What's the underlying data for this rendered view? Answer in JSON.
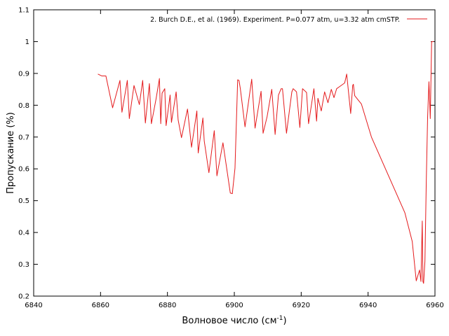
{
  "chart_data": {
    "type": "line",
    "xlabel": "Волновое число (см",
    "xlabel_sup": "-1",
    "xlabel_suffix": ")",
    "ylabel": "Пропускание (%)",
    "xlim": [
      6840,
      6960
    ],
    "ylim": [
      0.2,
      1.1
    ],
    "x_ticks": [
      6840,
      6860,
      6880,
      6900,
      6920,
      6940,
      6960
    ],
    "y_ticks": [
      0.2,
      0.3,
      0.4,
      0.5,
      0.6,
      0.7,
      0.8,
      0.9,
      1.0,
      1.1
    ],
    "x_tick_labels": [
      "6840",
      "6860",
      "6880",
      "6900",
      "6920",
      "6940",
      "6960"
    ],
    "y_tick_labels": [
      "0.2",
      "0.3",
      "0.4",
      "0.5",
      "0.6",
      "0.7",
      "0.8",
      "0.9",
      "1",
      "1.1"
    ],
    "grid": false,
    "legend_position": "top-right",
    "colors": {
      "series": "#e41a1c",
      "axis": "#000000"
    },
    "series": [
      {
        "name": "2. Burch D.E., et al. (1969). Experiment. P=0.077 atm, u=3.32 atm cmSTP.",
        "x": [
          6859.2,
          6860.4,
          6861.6,
          6863.6,
          6865.8,
          6866.4,
          6868.0,
          6868.6,
          6870.0,
          6871.6,
          6872.6,
          6873.4,
          6874.6,
          6875.2,
          6876.6,
          6877.6,
          6878.0,
          6878.4,
          6879.2,
          6879.6,
          6880.8,
          6881.2,
          6882.6,
          6883.2,
          6884.2,
          6886.0,
          6887.2,
          6888.8,
          6889.2,
          6890.6,
          6891.0,
          6892.4,
          6894.0,
          6894.8,
          6896.6,
          6898.8,
          6899.4,
          6900.2,
          6901.0,
          6901.4,
          6901.8,
          6903.2,
          6905.2,
          6906.2,
          6908.0,
          6908.6,
          6909.8,
          6911.2,
          6912.2,
          6913.2,
          6914.0,
          6914.4,
          6915.6,
          6917.2,
          6917.6,
          6918.6,
          6919.6,
          6920.4,
          6921.6,
          6922.2,
          6923.8,
          6924.6,
          6925.0,
          6926.0,
          6927.0,
          6928.0,
          6929.0,
          6929.8,
          6930.6,
          6931.4,
          6933.0,
          6933.6,
          6934.8,
          6935.4,
          6935.6,
          6936.0,
          6938.0,
          6941.0,
          6951.0,
          6953.2,
          6954.4,
          6955.4,
          6955.8,
          6956.2,
          6956.4,
          6956.6,
          6957.0,
          6957.4,
          6957.8,
          6958.2,
          6958.6,
          6959.0,
          6959.2,
          6959.6
        ],
        "y": [
          0.898,
          0.892,
          0.892,
          0.792,
          0.878,
          0.778,
          0.878,
          0.758,
          0.862,
          0.802,
          0.878,
          0.744,
          0.868,
          0.742,
          0.82,
          0.884,
          0.742,
          0.838,
          0.852,
          0.736,
          0.832,
          0.746,
          0.842,
          0.754,
          0.698,
          0.788,
          0.668,
          0.782,
          0.65,
          0.76,
          0.688,
          0.588,
          0.72,
          0.578,
          0.682,
          0.524,
          0.522,
          0.602,
          0.88,
          0.878,
          0.852,
          0.732,
          0.882,
          0.728,
          0.844,
          0.712,
          0.764,
          0.85,
          0.708,
          0.832,
          0.852,
          0.852,
          0.712,
          0.842,
          0.852,
          0.842,
          0.73,
          0.852,
          0.84,
          0.742,
          0.852,
          0.75,
          0.822,
          0.782,
          0.842,
          0.808,
          0.85,
          0.824,
          0.852,
          0.858,
          0.87,
          0.898,
          0.774,
          0.862,
          0.866,
          0.83,
          0.804,
          0.7,
          0.462,
          0.372,
          0.248,
          0.282,
          0.246,
          0.436,
          0.246,
          0.24,
          0.31,
          0.56,
          0.762,
          0.874,
          0.758,
          1.0,
          1.0,
          1.0
        ]
      }
    ]
  }
}
